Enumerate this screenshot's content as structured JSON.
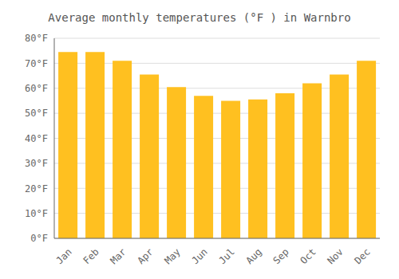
{
  "chart_data": {
    "type": "bar",
    "title": "Average monthly temperatures (°F ) in Warnbro",
    "categories": [
      "Jan",
      "Feb",
      "Mar",
      "Apr",
      "May",
      "Jun",
      "Jul",
      "Aug",
      "Sep",
      "Oct",
      "Nov",
      "Dec"
    ],
    "values": [
      74.5,
      74.5,
      71,
      65.5,
      60.5,
      57,
      55,
      55.5,
      58,
      62,
      65.5,
      71
    ],
    "color": "#FFC020",
    "ylim": [
      0,
      80
    ],
    "yticks": [
      {
        "value": 0,
        "label": "0°F"
      },
      {
        "value": 10,
        "label": "10°F"
      },
      {
        "value": 20,
        "label": "20°F"
      },
      {
        "value": 30,
        "label": "30°F"
      },
      {
        "value": 40,
        "label": "40°F"
      },
      {
        "value": 50,
        "label": "50°F"
      },
      {
        "value": 60,
        "label": "60°F"
      },
      {
        "value": 70,
        "label": "70°F"
      },
      {
        "value": 80,
        "label": "80°F"
      }
    ],
    "grid": true
  }
}
